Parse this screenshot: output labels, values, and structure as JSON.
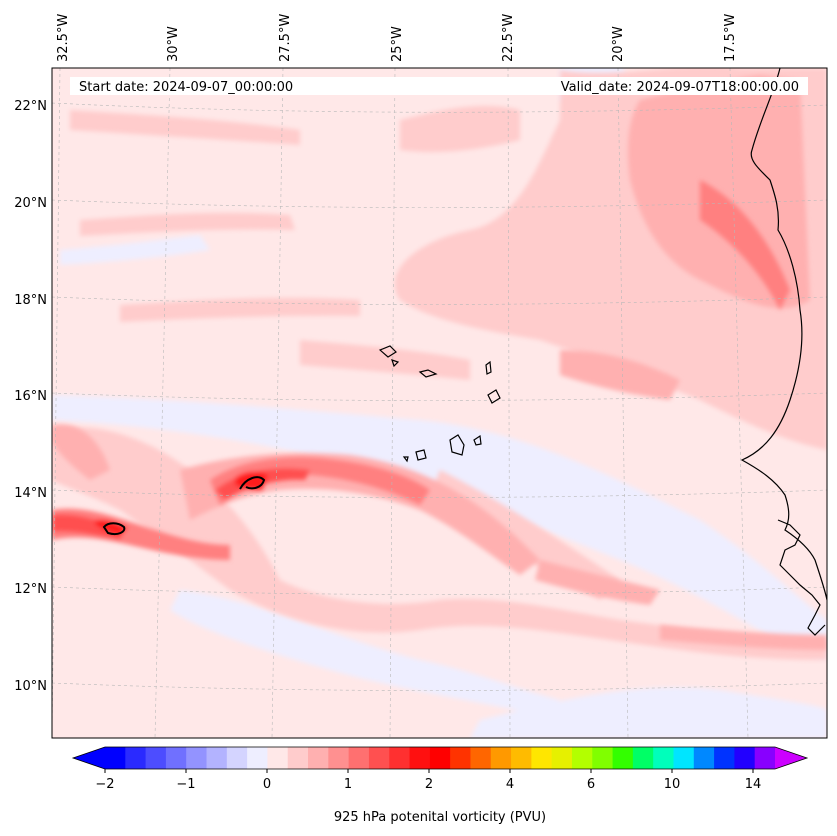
{
  "header": {
    "start_date": "Start date: 2024-09-07_00:00:00",
    "valid_date": "Valid_date: 2024-09-07T18:00:00.00"
  },
  "map": {
    "lon_labels": [
      "32.5°W",
      "30°W",
      "27.5°W",
      "25°W",
      "22.5°W",
      "20°W",
      "17.5°W"
    ],
    "lat_labels": [
      "22°N",
      "20°N",
      "18°N",
      "16°N",
      "14°N",
      "12°N",
      "10°N"
    ],
    "background_color": "#ffe8e8",
    "coastline_color": "#000000"
  },
  "colorbar": {
    "label": "925 hPa potenital vorticity (PVU)",
    "tick_labels": [
      "−2",
      "−1",
      "0",
      "1",
      "2",
      "4",
      "6",
      "10",
      "14"
    ],
    "colors": [
      "#0000ff",
      "#2a2aff",
      "#4d4dff",
      "#7070ff",
      "#9393ff",
      "#b3b3ff",
      "#d4d4ff",
      "#eeeeff",
      "#ffe8e8",
      "#ffcccc",
      "#ffb0b0",
      "#ff9090",
      "#ff7070",
      "#ff5050",
      "#ff3030",
      "#ff1010",
      "#ff0000",
      "#ff3300",
      "#ff6600",
      "#ff9900",
      "#ffbb00",
      "#ffe600",
      "#e6f000",
      "#b3ff00",
      "#80ff00",
      "#33ff00",
      "#00ff66",
      "#00ffbb",
      "#00e5ff",
      "#0088ff",
      "#0033ff",
      "#2200ff",
      "#8800ff"
    ],
    "extend_low_color": "#0000ff",
    "extend_high_color": "#cc00ff"
  }
}
